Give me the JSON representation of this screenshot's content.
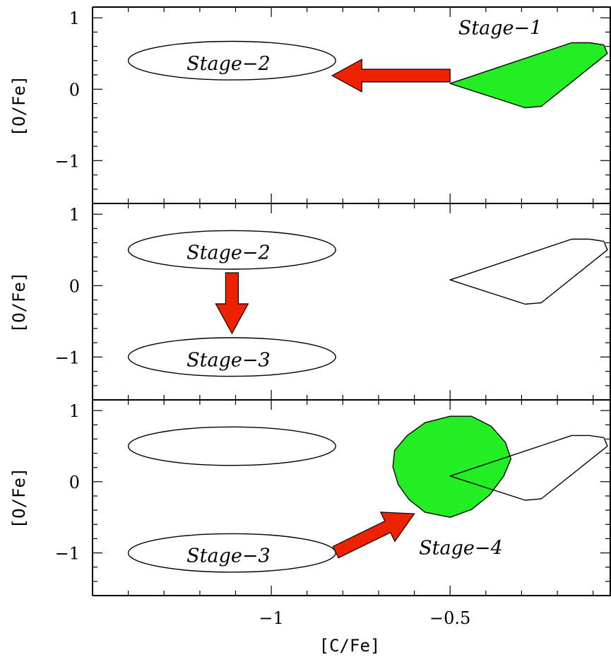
{
  "chart_data": {
    "type": "scatter",
    "xlabel": "[C/Fe]",
    "ylabel": "[O/Fe]",
    "xlim": [
      -1.5,
      -0.05
    ],
    "ylim": [
      -1.6,
      1.15
    ],
    "x_major_ticks": [
      -1,
      -0.5
    ],
    "x_tick_labels": [
      "−1",
      "−0.5"
    ],
    "y_major_ticks": [
      1,
      0,
      -1
    ],
    "y_tick_labels": [
      "1",
      "0",
      "−1"
    ],
    "colors": {
      "fill_green": "#22ee22",
      "arrow_red": "#ee2200",
      "stroke": "#000000"
    },
    "panels": [
      {
        "id": "top",
        "regions": [
          {
            "name": "stage-1-region",
            "label": "Stage−1",
            "label_at": [
              -0.36,
              0.87
            ],
            "shape": "polygon",
            "filled": true,
            "points": [
              [
                -0.5,
                0.08
              ],
              [
                -0.16,
                0.65
              ],
              [
                -0.11,
                0.65
              ],
              [
                -0.07,
                0.62
              ],
              [
                -0.06,
                0.5
              ],
              [
                -0.245,
                -0.24
              ],
              [
                -0.29,
                -0.26
              ]
            ]
          },
          {
            "name": "stage-2-region",
            "label": "Stage−2",
            "label_at": [
              -1.12,
              0.37
            ],
            "shape": "ellipse",
            "filled": false,
            "cx": -1.11,
            "cy": 0.4,
            "rx": 0.29,
            "ry": 0.27
          }
        ],
        "arrows": [
          {
            "name": "arrow-stage1-to-stage2",
            "from": [
              -0.5,
              0.19
            ],
            "to": [
              -0.83,
              0.19
            ]
          }
        ]
      },
      {
        "id": "middle",
        "regions": [
          {
            "name": "stage-1-region-outline",
            "label": "",
            "shape": "polygon",
            "filled": false,
            "points": [
              [
                -0.5,
                0.08
              ],
              [
                -0.16,
                0.65
              ],
              [
                -0.11,
                0.65
              ],
              [
                -0.07,
                0.62
              ],
              [
                -0.06,
                0.5
              ],
              [
                -0.245,
                -0.24
              ],
              [
                -0.29,
                -0.26
              ]
            ]
          },
          {
            "name": "stage-2-region",
            "label": "Stage−2",
            "label_at": [
              -1.12,
              0.47
            ],
            "shape": "ellipse",
            "filled": false,
            "cx": -1.11,
            "cy": 0.5,
            "rx": 0.29,
            "ry": 0.27
          },
          {
            "name": "stage-3-region",
            "label": "Stage−3",
            "label_at": [
              -1.12,
              -1.03
            ],
            "shape": "ellipse",
            "filled": false,
            "cx": -1.11,
            "cy": -1.0,
            "rx": 0.29,
            "ry": 0.27
          }
        ],
        "arrows": [
          {
            "name": "arrow-stage2-to-stage3",
            "from": [
              -1.11,
              0.18
            ],
            "to": [
              -1.11,
              -0.67
            ]
          }
        ]
      },
      {
        "id": "bottom",
        "regions": [
          {
            "name": "stage-1-region-outline",
            "label": "",
            "shape": "polygon",
            "filled": false,
            "points": [
              [
                -0.5,
                0.08
              ],
              [
                -0.16,
                0.65
              ],
              [
                -0.11,
                0.65
              ],
              [
                -0.07,
                0.62
              ],
              [
                -0.06,
                0.5
              ],
              [
                -0.245,
                -0.24
              ],
              [
                -0.29,
                -0.26
              ]
            ]
          },
          {
            "name": "stage-2-region-outline",
            "label": "",
            "shape": "ellipse",
            "filled": false,
            "cx": -1.11,
            "cy": 0.5,
            "rx": 0.29,
            "ry": 0.27
          },
          {
            "name": "stage-3-region",
            "label": "Stage−3",
            "label_at": [
              -1.12,
              -1.03
            ],
            "shape": "ellipse",
            "filled": false,
            "cx": -1.11,
            "cy": -1.0,
            "rx": 0.29,
            "ry": 0.27
          },
          {
            "name": "stage-4-region",
            "label": "Stage−4",
            "label_at": [
              -0.47,
              -0.92
            ],
            "shape": "polygon",
            "filled": true,
            "points": [
              [
                -0.57,
                0.83
              ],
              [
                -0.5,
                0.92
              ],
              [
                -0.44,
                0.92
              ],
              [
                -0.385,
                0.78
              ],
              [
                -0.345,
                0.55
              ],
              [
                -0.33,
                0.32
              ],
              [
                -0.35,
                0.08
              ],
              [
                -0.39,
                -0.19
              ],
              [
                -0.44,
                -0.39
              ],
              [
                -0.5,
                -0.5
              ],
              [
                -0.57,
                -0.43
              ],
              [
                -0.615,
                -0.25
              ],
              [
                -0.645,
                -0.04
              ],
              [
                -0.66,
                0.21
              ],
              [
                -0.655,
                0.44
              ],
              [
                -0.62,
                0.65
              ]
            ]
          }
        ],
        "arrows": [
          {
            "name": "arrow-stage3-to-stage4",
            "from": [
              -0.82,
              -0.99
            ],
            "to": [
              -0.6,
              -0.45
            ]
          }
        ]
      }
    ]
  }
}
